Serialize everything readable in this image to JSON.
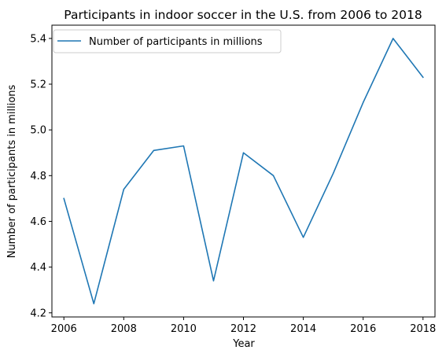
{
  "chart_data": {
    "type": "line",
    "title": "Participants in indoor soccer in the U.S. from 2006 to 2018",
    "xlabel": "Year",
    "ylabel": "Number of participants in millions",
    "x": [
      2006,
      2007,
      2008,
      2009,
      2010,
      2011,
      2012,
      2013,
      2014,
      2015,
      2016,
      2017,
      2018
    ],
    "series": [
      {
        "name": "Number of participants in millions",
        "values": [
          4.7,
          4.24,
          4.74,
          4.91,
          4.93,
          4.34,
          4.9,
          4.8,
          4.53,
          4.81,
          5.12,
          5.4,
          5.23
        ],
        "color": "#1f77b4"
      }
    ],
    "xlim": [
      2005.6,
      2018.4
    ],
    "ylim": [
      4.182,
      5.458
    ],
    "x_ticks": [
      "2006",
      "2008",
      "2010",
      "2012",
      "2014",
      "2016",
      "2018"
    ],
    "y_ticks": [
      "4.2",
      "4.4",
      "4.6",
      "4.8",
      "5.0",
      "5.2",
      "5.4"
    ],
    "grid": false,
    "legend_position": "upper-left"
  }
}
